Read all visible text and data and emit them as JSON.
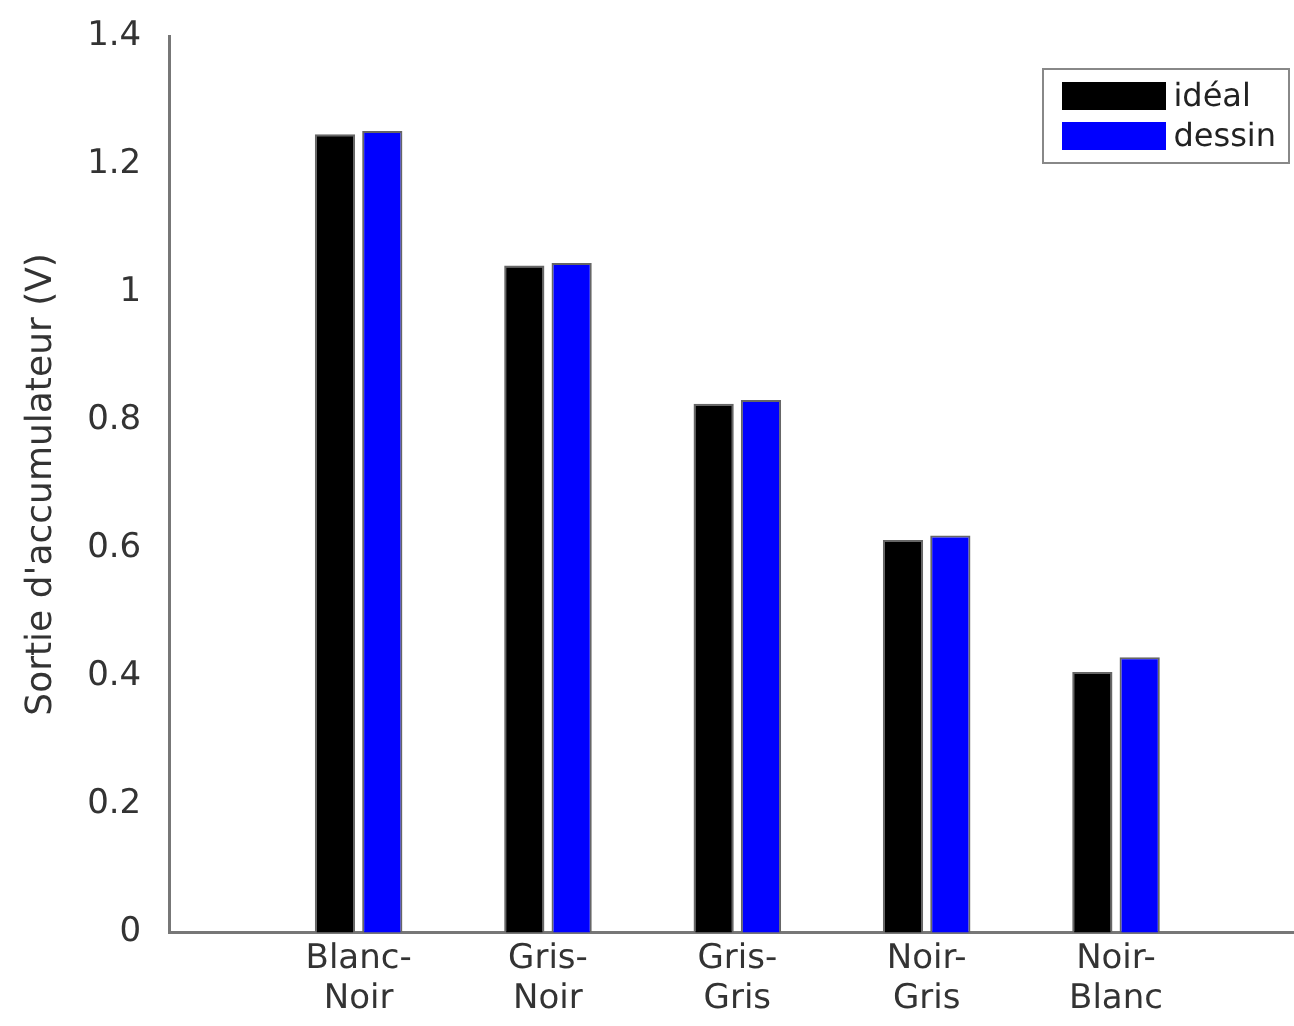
{
  "chart_data": {
    "type": "bar",
    "ylabel": "Sortie d'accumulateur (V)",
    "categories": [
      "Blanc-Noir",
      "Gris-Noir",
      "Gris-Gris",
      "Noir-Gris",
      "Noir-Blanc"
    ],
    "series": [
      {
        "name": "idéal",
        "color": "#000000",
        "values": [
          1.247,
          1.042,
          0.826,
          0.613,
          0.407
        ]
      },
      {
        "name": "dessin",
        "color": "#0000ff",
        "values": [
          1.252,
          1.046,
          0.832,
          0.62,
          0.43
        ]
      }
    ],
    "ylim": [
      0,
      1.4
    ],
    "yticks": [
      0,
      0.2,
      0.4,
      0.6,
      0.8,
      1,
      1.2,
      1.4
    ],
    "grid": false,
    "legend": "top right"
  }
}
